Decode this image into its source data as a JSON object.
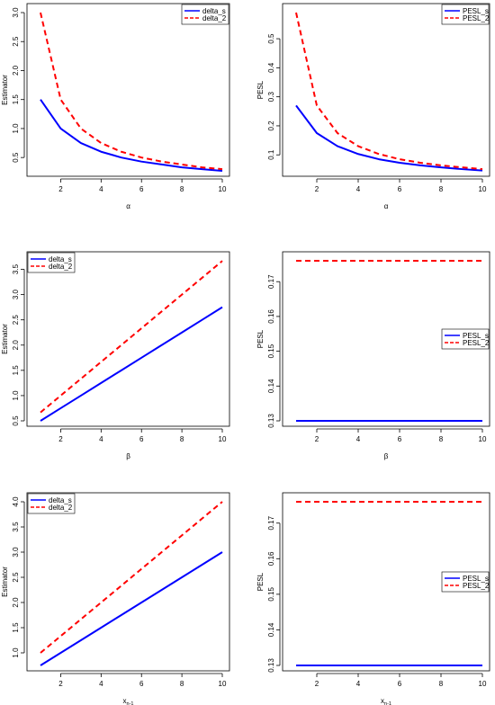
{
  "colors": {
    "delta_s": "#0000ff",
    "delta_2": "#ff0000",
    "axis": "#000000"
  },
  "chart_data": [
    {
      "type": "line",
      "xlabel": "α",
      "ylabel": "Estimator",
      "x": [
        1,
        2,
        3,
        4,
        5,
        6,
        7,
        8,
        9,
        10
      ],
      "xlim": [
        1,
        10
      ],
      "xticks": [
        2,
        4,
        6,
        8,
        10
      ],
      "ylim": [
        0.27,
        3.0
      ],
      "yticks": [
        0.5,
        1.0,
        1.5,
        2.0,
        2.5,
        3.0
      ],
      "legend_position": "top-right",
      "series": [
        {
          "name": "delta_s",
          "style": "solid",
          "values": [
            1.5,
            1.0,
            0.75,
            0.6,
            0.5,
            0.43,
            0.38,
            0.33,
            0.3,
            0.27
          ]
        },
        {
          "name": "delta_2",
          "style": "dashed",
          "values": [
            3.0,
            1.5,
            1.0,
            0.75,
            0.6,
            0.5,
            0.43,
            0.38,
            0.33,
            0.3
          ]
        }
      ]
    },
    {
      "type": "line",
      "xlabel": "α",
      "ylabel": "PESL",
      "x": [
        1,
        2,
        3,
        4,
        5,
        6,
        7,
        8,
        9,
        10
      ],
      "xlim": [
        1,
        10
      ],
      "xticks": [
        2,
        4,
        6,
        8,
        10
      ],
      "ylim": [
        0.045,
        0.59
      ],
      "yticks": [
        0.1,
        0.2,
        0.3,
        0.4,
        0.5
      ],
      "legend_position": "top-right",
      "series": [
        {
          "name": "PESL_s",
          "style": "solid",
          "values": [
            0.27,
            0.175,
            0.13,
            0.103,
            0.085,
            0.073,
            0.064,
            0.057,
            0.051,
            0.046
          ]
        },
        {
          "name": "PESL_2",
          "style": "dashed",
          "values": [
            0.59,
            0.27,
            0.175,
            0.13,
            0.103,
            0.085,
            0.073,
            0.064,
            0.057,
            0.051
          ]
        }
      ]
    },
    {
      "type": "line",
      "xlabel": "β",
      "ylabel": "Estimator",
      "x": [
        1,
        2,
        3,
        4,
        5,
        6,
        7,
        8,
        9,
        10
      ],
      "xlim": [
        1,
        10
      ],
      "xticks": [
        2,
        4,
        6,
        8,
        10
      ],
      "ylim": [
        0.5,
        3.67
      ],
      "yticks": [
        0.5,
        1.0,
        1.5,
        2.0,
        2.5,
        3.0,
        3.5
      ],
      "legend_position": "top-left",
      "series": [
        {
          "name": "delta_s",
          "style": "solid",
          "values": [
            0.5,
            0.75,
            1.0,
            1.25,
            1.5,
            1.75,
            2.0,
            2.25,
            2.5,
            2.75
          ]
        },
        {
          "name": "delta_2",
          "style": "dashed",
          "values": [
            0.667,
            1.0,
            1.333,
            1.667,
            2.0,
            2.333,
            2.667,
            3.0,
            3.333,
            3.667
          ]
        }
      ]
    },
    {
      "type": "line",
      "xlabel": "β",
      "ylabel": "PESL",
      "x": [
        1,
        2,
        3,
        4,
        5,
        6,
        7,
        8,
        9,
        10
      ],
      "xlim": [
        1,
        10
      ],
      "xticks": [
        2,
        4,
        6,
        8,
        10
      ],
      "ylim": [
        0.13,
        0.176
      ],
      "yticks": [
        0.13,
        0.14,
        0.15,
        0.16,
        0.17
      ],
      "legend_position": "right",
      "series": [
        {
          "name": "PESL_s",
          "style": "solid",
          "values": [
            0.13,
            0.13,
            0.13,
            0.13,
            0.13,
            0.13,
            0.13,
            0.13,
            0.13,
            0.13
          ]
        },
        {
          "name": "PESL_2",
          "style": "dashed",
          "values": [
            0.176,
            0.176,
            0.176,
            0.176,
            0.176,
            0.176,
            0.176,
            0.176,
            0.176,
            0.176
          ]
        }
      ]
    },
    {
      "type": "line",
      "xlabel": "xn-1",
      "ylabel": "Estimator",
      "x": [
        1,
        2,
        3,
        4,
        5,
        6,
        7,
        8,
        9,
        10
      ],
      "xlim": [
        1,
        10
      ],
      "xticks": [
        2,
        4,
        6,
        8,
        10
      ],
      "ylim": [
        0.75,
        4.0
      ],
      "yticks": [
        1.0,
        1.5,
        2.0,
        2.5,
        3.0,
        3.5,
        4.0
      ],
      "legend_position": "top-left",
      "series": [
        {
          "name": "delta_s",
          "style": "solid",
          "values": [
            0.75,
            1.0,
            1.25,
            1.5,
            1.75,
            2.0,
            2.25,
            2.5,
            2.75,
            3.0
          ]
        },
        {
          "name": "delta_2",
          "style": "dashed",
          "values": [
            1.0,
            1.333,
            1.667,
            2.0,
            2.333,
            2.667,
            3.0,
            3.333,
            3.667,
            4.0
          ]
        }
      ]
    },
    {
      "type": "line",
      "xlabel": "xn-1",
      "ylabel": "PESL",
      "x": [
        1,
        2,
        3,
        4,
        5,
        6,
        7,
        8,
        9,
        10
      ],
      "xlim": [
        1,
        10
      ],
      "xticks": [
        2,
        4,
        6,
        8,
        10
      ],
      "ylim": [
        0.13,
        0.176
      ],
      "yticks": [
        0.13,
        0.14,
        0.15,
        0.16,
        0.17
      ],
      "legend_position": "right",
      "series": [
        {
          "name": "PESL_s",
          "style": "solid",
          "values": [
            0.13,
            0.13,
            0.13,
            0.13,
            0.13,
            0.13,
            0.13,
            0.13,
            0.13,
            0.13
          ]
        },
        {
          "name": "PESL_2",
          "style": "dashed",
          "values": [
            0.176,
            0.176,
            0.176,
            0.176,
            0.176,
            0.176,
            0.176,
            0.176,
            0.176,
            0.176
          ]
        }
      ]
    }
  ]
}
